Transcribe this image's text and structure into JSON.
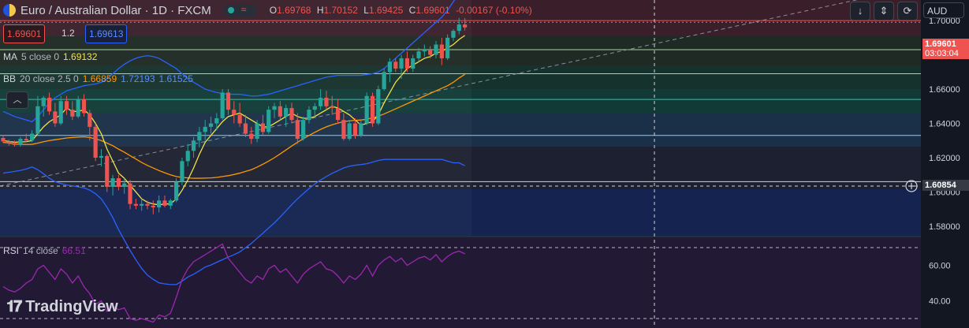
{
  "header": {
    "symbol": "Euro / Australian Dollar · 1D · FXCM",
    "ohlc": {
      "o_label": "O",
      "o": "1.69768",
      "h_label": "H",
      "h": "1.70152",
      "l_label": "L",
      "l": "1.69425",
      "c_label": "C",
      "c": "1.69601",
      "change": "-0.00167 (-0.10%)"
    },
    "sell_price": "1.69601",
    "spread": "1.2",
    "buy_price": "1.69613"
  },
  "indicators": {
    "ma": {
      "label": "MA",
      "params": "5 close 0",
      "value": "1.69132"
    },
    "bb": {
      "label": "BB",
      "params": "20 close 2.5 0",
      "basis": "1.66859",
      "upper": "1.72193",
      "lower": "1.61525"
    },
    "rsi": {
      "label": "RSI",
      "params": "14 close",
      "value": "66.51"
    }
  },
  "axis": {
    "currency": "AUD",
    "price_tag": "1.69601",
    "countdown": "03:03:04",
    "crosshair_price": "1.60854",
    "y_ticks": [
      "1.70000",
      "1.68000",
      "1.66000",
      "1.64000",
      "1.62000",
      "1.60000",
      "1.58000"
    ],
    "rsi_ticks": [
      "60.00",
      "40.00"
    ]
  },
  "branding": {
    "logo_text": "TradingView"
  },
  "colors": {
    "up": "#26a69a",
    "down": "#ef5350",
    "ma": "#f0e442",
    "bb_basis": "#ff9800",
    "bb_band": "#2962ff",
    "rsi": "#9c27b0"
  },
  "chart_data": {
    "type": "candlestick",
    "ylim": [
      1.574,
      1.712
    ],
    "candles": [
      [
        1.6315,
        1.633,
        1.6285,
        1.6295
      ],
      [
        1.6295,
        1.6305,
        1.627,
        1.6285
      ],
      [
        1.6285,
        1.63,
        1.6265,
        1.6275
      ],
      [
        1.6275,
        1.632,
        1.6265,
        1.631
      ],
      [
        1.631,
        1.634,
        1.629,
        1.63
      ],
      [
        1.63,
        1.636,
        1.629,
        1.634
      ],
      [
        1.634,
        1.656,
        1.633,
        1.65
      ],
      [
        1.65,
        1.656,
        1.644,
        1.655
      ],
      [
        1.655,
        1.658,
        1.645,
        1.647
      ],
      [
        1.647,
        1.652,
        1.638,
        1.64
      ],
      [
        1.64,
        1.656,
        1.639,
        1.653
      ],
      [
        1.653,
        1.656,
        1.645,
        1.648
      ],
      [
        1.648,
        1.653,
        1.642,
        1.644
      ],
      [
        1.644,
        1.656,
        1.643,
        1.654
      ],
      [
        1.654,
        1.657,
        1.644,
        1.646
      ],
      [
        1.646,
        1.648,
        1.63,
        1.638
      ],
      [
        1.638,
        1.64,
        1.618,
        1.62
      ],
      [
        1.62,
        1.625,
        1.615,
        1.621
      ],
      [
        1.621,
        1.622,
        1.6,
        1.603
      ],
      [
        1.603,
        1.61,
        1.598,
        1.608
      ],
      [
        1.608,
        1.61,
        1.601,
        1.603
      ],
      [
        1.603,
        1.608,
        1.599,
        1.605
      ],
      [
        1.605,
        1.607,
        1.59,
        1.593
      ],
      [
        1.593,
        1.596,
        1.59,
        1.592
      ],
      [
        1.592,
        1.596,
        1.589,
        1.593
      ],
      [
        1.593,
        1.595,
        1.59,
        1.592
      ],
      [
        1.592,
        1.595,
        1.587,
        1.591
      ],
      [
        1.591,
        1.598,
        1.588,
        1.595
      ],
      [
        1.595,
        1.598,
        1.591,
        1.592
      ],
      [
        1.592,
        1.596,
        1.59,
        1.595
      ],
      [
        1.595,
        1.608,
        1.594,
        1.606
      ],
      [
        1.606,
        1.62,
        1.604,
        1.618
      ],
      [
        1.618,
        1.628,
        1.615,
        1.624
      ],
      [
        1.624,
        1.632,
        1.62,
        1.63
      ],
      [
        1.63,
        1.638,
        1.626,
        1.635
      ],
      [
        1.635,
        1.642,
        1.63,
        1.638
      ],
      [
        1.638,
        1.644,
        1.634,
        1.64
      ],
      [
        1.64,
        1.646,
        1.636,
        1.643
      ],
      [
        1.643,
        1.66,
        1.642,
        1.658
      ],
      [
        1.658,
        1.66,
        1.645,
        1.648
      ],
      [
        1.648,
        1.653,
        1.64,
        1.645
      ],
      [
        1.645,
        1.652,
        1.638,
        1.64
      ],
      [
        1.64,
        1.645,
        1.632,
        1.634
      ],
      [
        1.634,
        1.638,
        1.628,
        1.631
      ],
      [
        1.631,
        1.642,
        1.629,
        1.64
      ],
      [
        1.64,
        1.645,
        1.633,
        1.635
      ],
      [
        1.635,
        1.65,
        1.634,
        1.648
      ],
      [
        1.648,
        1.652,
        1.643,
        1.65
      ],
      [
        1.65,
        1.653,
        1.642,
        1.644
      ],
      [
        1.644,
        1.651,
        1.638,
        1.649
      ],
      [
        1.649,
        1.652,
        1.64,
        1.642
      ],
      [
        1.642,
        1.646,
        1.628,
        1.631
      ],
      [
        1.631,
        1.644,
        1.63,
        1.642
      ],
      [
        1.642,
        1.65,
        1.64,
        1.648
      ],
      [
        1.648,
        1.652,
        1.644,
        1.65
      ],
      [
        1.65,
        1.66,
        1.648,
        1.655
      ],
      [
        1.655,
        1.659,
        1.648,
        1.65
      ],
      [
        1.65,
        1.656,
        1.645,
        1.649
      ],
      [
        1.649,
        1.654,
        1.64,
        1.642
      ],
      [
        1.642,
        1.646,
        1.63,
        1.631
      ],
      [
        1.631,
        1.642,
        1.63,
        1.64
      ],
      [
        1.64,
        1.643,
        1.631,
        1.633
      ],
      [
        1.633,
        1.642,
        1.632,
        1.64
      ],
      [
        1.64,
        1.658,
        1.639,
        1.656
      ],
      [
        1.656,
        1.658,
        1.638,
        1.64
      ],
      [
        1.64,
        1.662,
        1.639,
        1.66
      ],
      [
        1.66,
        1.672,
        1.659,
        1.67
      ],
      [
        1.67,
        1.678,
        1.664,
        1.676
      ],
      [
        1.676,
        1.678,
        1.67,
        1.672
      ],
      [
        1.672,
        1.68,
        1.666,
        1.678
      ],
      [
        1.678,
        1.682,
        1.67,
        1.672
      ],
      [
        1.672,
        1.68,
        1.67,
        1.678
      ],
      [
        1.678,
        1.684,
        1.676,
        1.682
      ],
      [
        1.682,
        1.686,
        1.679,
        1.683
      ],
      [
        1.683,
        1.685,
        1.678,
        1.68
      ],
      [
        1.68,
        1.688,
        1.678,
        1.686
      ],
      [
        1.686,
        1.69,
        1.674,
        1.678
      ],
      [
        1.678,
        1.692,
        1.677,
        1.69
      ],
      [
        1.69,
        1.695,
        1.688,
        1.694
      ],
      [
        1.694,
        1.7015,
        1.692,
        1.6977
      ],
      [
        1.6977,
        1.7015,
        1.6942,
        1.696
      ]
    ],
    "ma5": [
      1.63,
      1.6295,
      1.629,
      1.6292,
      1.6293,
      1.63,
      1.634,
      1.638,
      1.641,
      1.643,
      1.645,
      1.649,
      1.647,
      1.647,
      1.648,
      1.645,
      1.64,
      1.634,
      1.625,
      1.618,
      1.611,
      1.608,
      1.604,
      1.6,
      1.596,
      1.594,
      1.593,
      1.5925,
      1.593,
      1.593,
      1.596,
      1.601,
      1.607,
      1.614,
      1.622,
      1.629,
      1.633,
      1.637,
      1.641,
      1.644,
      1.645,
      1.646,
      1.644,
      1.642,
      1.64,
      1.638,
      1.638,
      1.64,
      1.642,
      1.644,
      1.646,
      1.644,
      1.643,
      1.643,
      1.644,
      1.646,
      1.648,
      1.65,
      1.649,
      1.647,
      1.645,
      1.642,
      1.639,
      1.64,
      1.641,
      1.645,
      1.652,
      1.658,
      1.664,
      1.668,
      1.672,
      1.674,
      1.676,
      1.678,
      1.679,
      1.681,
      1.682,
      1.684,
      1.686,
      1.689,
      1.6913
    ],
    "bb_basis": [
      1.629,
      1.6285,
      1.628,
      1.6278,
      1.6277,
      1.6278,
      1.6285,
      1.6293,
      1.63,
      1.6305,
      1.631,
      1.6315,
      1.6318,
      1.632,
      1.6322,
      1.6318,
      1.631,
      1.63,
      1.6285,
      1.627,
      1.625,
      1.6232,
      1.6212,
      1.6192,
      1.6172,
      1.6155,
      1.614,
      1.6125,
      1.6112,
      1.61,
      1.609,
      1.6085,
      1.6082,
      1.608,
      1.608,
      1.6081,
      1.6082,
      1.6085,
      1.609,
      1.6095,
      1.6102,
      1.611,
      1.612,
      1.613,
      1.6145,
      1.6162,
      1.618,
      1.62,
      1.6222,
      1.6245,
      1.6268,
      1.629,
      1.631,
      1.633,
      1.6348,
      1.6365,
      1.638,
      1.6392,
      1.6402,
      1.641,
      1.6415,
      1.6418,
      1.642,
      1.6425,
      1.6432,
      1.6442,
      1.6455,
      1.647,
      1.6485,
      1.65,
      1.6515,
      1.653,
      1.6545,
      1.656,
      1.6575,
      1.659,
      1.6605,
      1.662,
      1.664,
      1.6665,
      1.6686
    ],
    "bb_upper": [
      1.647,
      1.6455,
      1.644,
      1.643,
      1.642,
      1.641,
      1.644,
      1.648,
      1.652,
      1.655,
      1.657,
      1.659,
      1.66,
      1.661,
      1.662,
      1.6625,
      1.663,
      1.664,
      1.666,
      1.669,
      1.672,
      1.6745,
      1.6765,
      1.678,
      1.679,
      1.6795,
      1.679,
      1.678,
      1.676,
      1.674,
      1.672,
      1.669,
      1.666,
      1.664,
      1.662,
      1.66,
      1.659,
      1.658,
      1.6575,
      1.657,
      1.657,
      1.657,
      1.6565,
      1.656,
      1.656,
      1.6565,
      1.657,
      1.658,
      1.659,
      1.66,
      1.661,
      1.662,
      1.663,
      1.664,
      1.665,
      1.666,
      1.667,
      1.6675,
      1.668,
      1.668,
      1.668,
      1.668,
      1.668,
      1.6685,
      1.669,
      1.67,
      1.672,
      1.675,
      1.678,
      1.681,
      1.684,
      1.687,
      1.69,
      1.693,
      1.696,
      1.699,
      1.702,
      1.706,
      1.711,
      1.716,
      1.7219
    ],
    "bb_lower": [
      1.611,
      1.6115,
      1.612,
      1.6126,
      1.6134,
      1.6146,
      1.613,
      1.6106,
      1.608,
      1.606,
      1.605,
      1.604,
      1.6036,
      1.603,
      1.6024,
      1.6011,
      1.599,
      1.596,
      1.591,
      1.585,
      1.578,
      1.5719,
      1.5659,
      1.5604,
      1.5554,
      1.5515,
      1.549,
      1.547,
      1.5464,
      1.546,
      1.546,
      1.548,
      1.5504,
      1.552,
      1.554,
      1.5562,
      1.5574,
      1.559,
      1.5605,
      1.562,
      1.5634,
      1.565,
      1.5675,
      1.57,
      1.573,
      1.5759,
      1.579,
      1.582,
      1.5854,
      1.589,
      1.5926,
      1.596,
      1.599,
      1.602,
      1.6046,
      1.607,
      1.609,
      1.6109,
      1.6124,
      1.614,
      1.615,
      1.6156,
      1.616,
      1.6165,
      1.6174,
      1.6184,
      1.619,
      1.619,
      1.619,
      1.619,
      1.619,
      1.619,
      1.619,
      1.619,
      1.619,
      1.619,
      1.619,
      1.618,
      1.617,
      1.617,
      1.6153
    ],
    "rsi": [
      48,
      46,
      45,
      47,
      50,
      52,
      58,
      60,
      56,
      52,
      58,
      55,
      50,
      54,
      48,
      44,
      38,
      40,
      34,
      37,
      35,
      36,
      30,
      29,
      30,
      29,
      28,
      32,
      31,
      33,
      42,
      52,
      58,
      62,
      64,
      66,
      68,
      70,
      72,
      64,
      60,
      56,
      52,
      50,
      54,
      52,
      58,
      60,
      56,
      58,
      54,
      50,
      55,
      58,
      60,
      62,
      58,
      57,
      54,
      50,
      54,
      52,
      55,
      60,
      54,
      60,
      63,
      65,
      62,
      64,
      60,
      62,
      64,
      65,
      63,
      66,
      62,
      65,
      67,
      68,
      66.5
    ],
    "reference_levels": [
      1.7,
      1.699,
      1.683,
      1.669,
      1.654,
      1.633,
      1.606
    ]
  }
}
